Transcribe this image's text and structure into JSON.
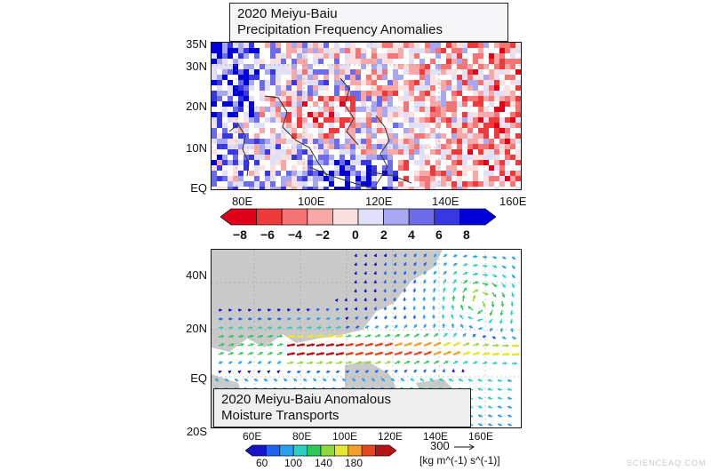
{
  "top_panel": {
    "title_line1": "2020 Meiyu-Baiu",
    "title_line2": "Precipitation Frequency Anomalies",
    "y_ticks": [
      "35N",
      "30N",
      "20N",
      "10N",
      "EQ"
    ],
    "x_ticks": [
      "80E",
      "100E",
      "120E",
      "140E",
      "160E"
    ],
    "colorbar": {
      "labels": [
        "−8",
        "−6",
        "−4",
        "−2",
        "0",
        "2",
        "4",
        "6",
        "8"
      ],
      "colors": [
        "#e0001a",
        "#ee3a3a",
        "#f57474",
        "#f9a8a8",
        "#fce0e0",
        "#e0e0fa",
        "#a8a8f2",
        "#6c6cea",
        "#3838e2",
        "#0000d6"
      ]
    }
  },
  "bottom_panel": {
    "title_line1": "2020 Meiyu-Baiu Anomalous",
    "title_line2": "Moisture Transports",
    "y_ticks": [
      "40N",
      "20N",
      "EQ",
      "20S"
    ],
    "x_ticks": [
      "60E",
      "80E",
      "100E",
      "120E",
      "140E",
      "160E"
    ],
    "colorbar": {
      "labels": [
        "60",
        "100",
        "140",
        "180"
      ],
      "colors": [
        "#1414c8",
        "#1e64f0",
        "#28a0f0",
        "#2ccfc0",
        "#2ec85a",
        "#8ed93a",
        "#e6e632",
        "#f5a028",
        "#e6461e",
        "#b41414"
      ]
    },
    "reference_vector": {
      "value": "300",
      "units": "[kg m^(-1) s^(-1)]"
    }
  },
  "watermark": "SCIENCEAQ.COM"
}
